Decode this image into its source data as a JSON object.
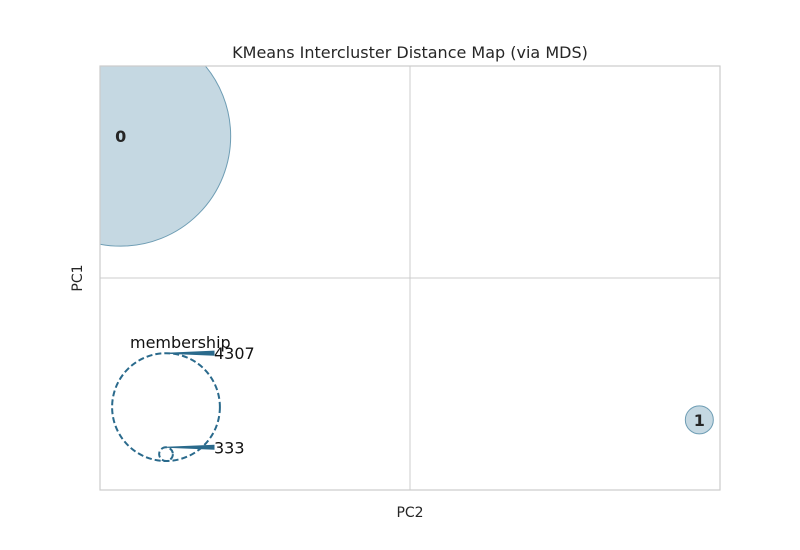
{
  "chart_data": {
    "type": "scatter",
    "title": "KMeans Intercluster Distance Map (via MDS)",
    "xlabel": "PC2",
    "ylabel": "PC1",
    "grid": true,
    "clusters": [
      {
        "label": "0",
        "pc2": -1.82,
        "pc1": 0.91,
        "size": 4307
      },
      {
        "label": "1",
        "pc2": 1.82,
        "pc1": -0.91,
        "size": 333
      }
    ],
    "legend": {
      "title": "membership",
      "placement": "lower-left",
      "sizes": [
        333,
        4307
      ]
    },
    "colors": {
      "bubble_fill": "#c5d8e2",
      "bubble_edge": "#6e9db4",
      "legend_line": "#2a6a8c",
      "grid": "#cccccc",
      "frame": "#cccccc",
      "text": "#262626"
    }
  }
}
